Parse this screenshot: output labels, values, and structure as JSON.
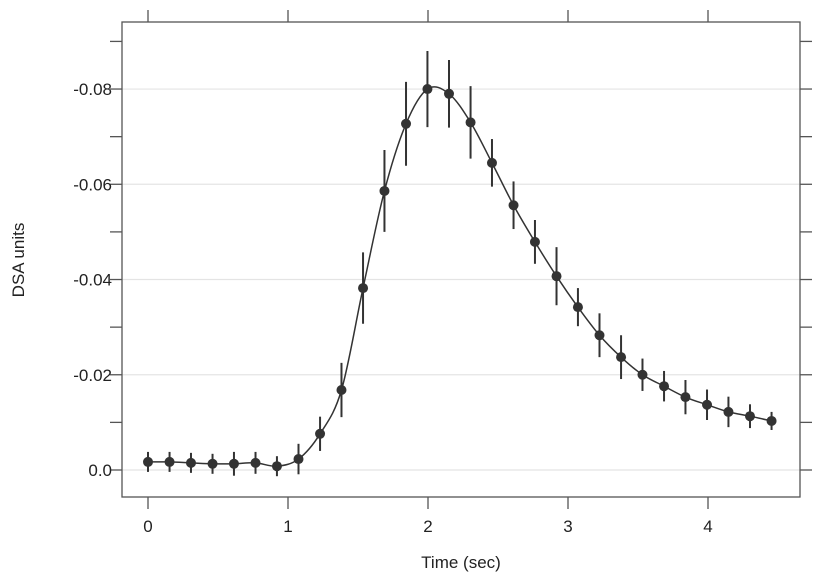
{
  "chart_data": {
    "type": "scatter",
    "title": "",
    "xlabel": "Time (sec)",
    "ylabel": "DSA units",
    "xlim": [
      -0.19,
      4.65
    ],
    "ylim": [
      0.0035,
      -0.0945
    ],
    "y_axis_inverted": true,
    "x_ticks": [
      0,
      1,
      2,
      3,
      4
    ],
    "x_tick_labels": [
      "0",
      "1",
      "2",
      "3",
      "4"
    ],
    "y_ticks": [
      0.0,
      -0.02,
      -0.04,
      -0.06,
      -0.08
    ],
    "y_tick_labels": [
      "0.0",
      "-0.02",
      "-0.04",
      "-0.06",
      "-0.08"
    ],
    "y_minor_ticks": [
      -0.01,
      -0.03,
      -0.05,
      -0.07,
      -0.09
    ],
    "grid": "horizontal at major y ticks",
    "legend": "none",
    "series": [
      {
        "style": "points with error bars and smooth fitted line",
        "color": "#333333",
        "x": [
          0,
          0.154,
          0.307,
          0.461,
          0.614,
          0.768,
          0.921,
          1.075,
          1.229,
          1.382,
          1.536,
          1.689,
          1.843,
          1.996,
          2.15,
          2.304,
          2.457,
          2.611,
          2.764,
          2.918,
          3.071,
          3.225,
          3.379,
          3.532,
          3.686,
          3.839,
          3.993,
          4.146,
          4.3,
          4.454
        ],
        "y": [
          -0.0017,
          -0.0017,
          -0.0015,
          -0.0013,
          -0.0013,
          -0.0015,
          -0.0008,
          -0.0023,
          -0.0076,
          -0.0168,
          -0.0382,
          -0.0586,
          -0.0727,
          -0.08,
          -0.079,
          -0.073,
          -0.0645,
          -0.0556,
          -0.0479,
          -0.0407,
          -0.0342,
          -0.0283,
          -0.0237,
          -0.02,
          -0.0176,
          -0.0153,
          -0.0137,
          -0.0122,
          -0.0113,
          -0.0103
        ],
        "error": [
          0.0021,
          0.0021,
          0.0021,
          0.0021,
          0.0025,
          0.0023,
          0.0021,
          0.0032,
          0.0036,
          0.0057,
          0.0075,
          0.0086,
          0.0088,
          0.008,
          0.0071,
          0.0076,
          0.005,
          0.005,
          0.0046,
          0.0061,
          0.004,
          0.0046,
          0.0046,
          0.0034,
          0.0032,
          0.0036,
          0.0032,
          0.0032,
          0.0025,
          0.0019
        ]
      }
    ]
  }
}
